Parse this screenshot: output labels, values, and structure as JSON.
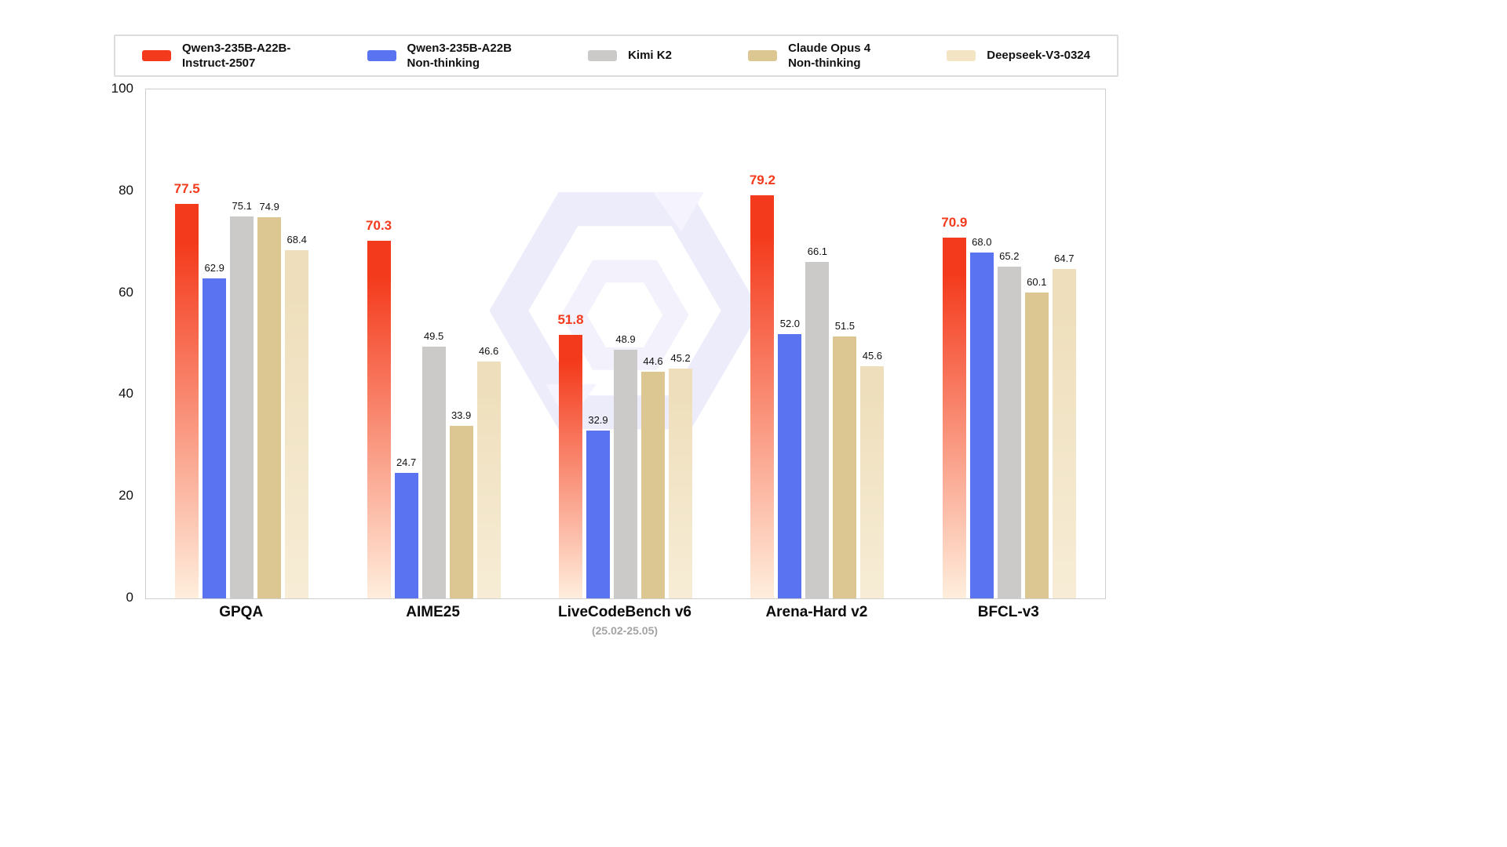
{
  "legend": {
    "items": [
      {
        "label": "Qwen3-235B-A22B-\nInstruct-2507",
        "color": "#f43a1c"
      },
      {
        "label": "Qwen3-235B-A22B\nNon-thinking",
        "color": "#5a73f1"
      },
      {
        "label": "Kimi K2",
        "color": "#cbcac8"
      },
      {
        "label": "Claude Opus 4\nNon-thinking",
        "color": "#dcc793"
      },
      {
        "label": "Deepseek-V3-0324",
        "color": "#f3e5c4"
      }
    ]
  },
  "chart_data": {
    "type": "bar",
    "categories": [
      "GPQA",
      "AIME25",
      "LiveCodeBench v6",
      "Arena-Hard v2",
      "BFCL-v3"
    ],
    "category_subtitles": [
      "",
      "",
      "(25.02-25.05)",
      "",
      ""
    ],
    "series": [
      {
        "name": "Qwen3-235B-A22B-Instruct-2507",
        "color": "#f43a1c",
        "color_bottom": "#ffeedd",
        "values": [
          77.5,
          70.3,
          51.8,
          79.2,
          70.9
        ]
      },
      {
        "name": "Qwen3-235B-A22B Non-thinking",
        "color": "#5a73f1",
        "values": [
          62.9,
          24.7,
          32.9,
          52.0,
          68.0
        ]
      },
      {
        "name": "Kimi K2",
        "color": "#cbcac8",
        "values": [
          75.1,
          49.5,
          48.9,
          66.1,
          65.2
        ]
      },
      {
        "name": "Claude Opus 4 Non-thinking",
        "color": "#dcc793",
        "values": [
          74.9,
          33.9,
          44.6,
          51.5,
          60.1
        ]
      },
      {
        "name": "Deepseek-V3-0324",
        "color": "#eedebb",
        "color_bottom": "#f7edd6",
        "values": [
          68.4,
          46.6,
          45.2,
          45.6,
          64.7
        ]
      }
    ],
    "highlight_series": 0,
    "emphasis_color": "#f43a1c",
    "title": "",
    "xlabel": "",
    "ylabel": "",
    "ylim": [
      0,
      100
    ],
    "yticks": [
      0,
      20,
      40,
      60,
      80,
      100
    ],
    "grid": false,
    "legend_position": "top",
    "value_label_decimals": 1
  }
}
